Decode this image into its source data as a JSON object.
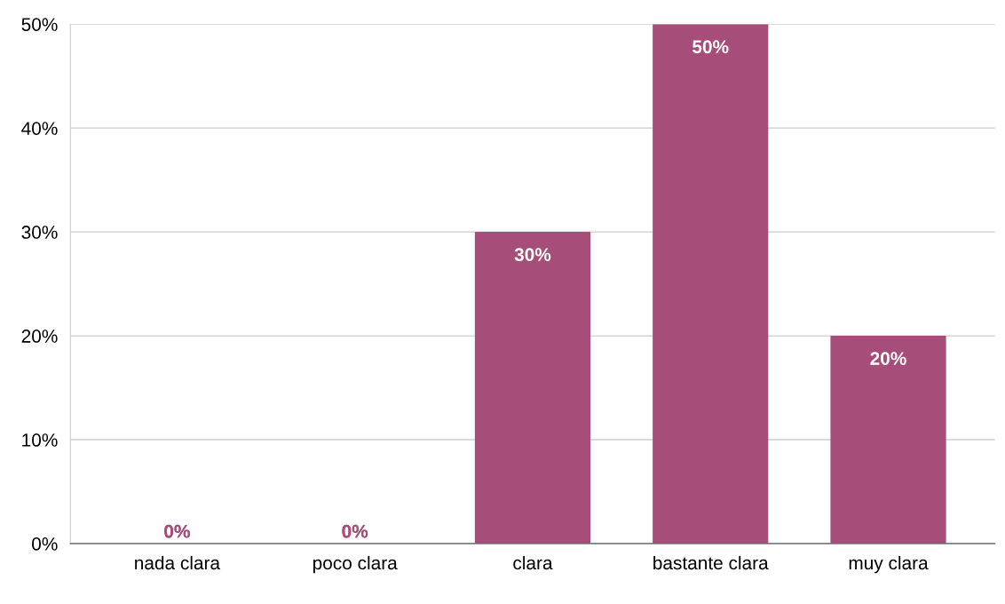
{
  "chart_data": {
    "type": "bar",
    "categories": [
      "nada clara",
      "poco clara",
      "clara",
      "bastante clara",
      "muy clara"
    ],
    "values": [
      0,
      0,
      30,
      50,
      20
    ],
    "value_labels": [
      "0%",
      "0%",
      "30%",
      "50%",
      "20%"
    ],
    "color": "#a64d79",
    "ylim": [
      0,
      50
    ],
    "yticks": [
      {
        "value": 0,
        "label": "0%"
      },
      {
        "value": 10,
        "label": "10%"
      },
      {
        "value": 20,
        "label": "20%"
      },
      {
        "value": 30,
        "label": "30%"
      },
      {
        "value": 40,
        "label": "40%"
      },
      {
        "value": 50,
        "label": "50%"
      }
    ],
    "grid": "y"
  }
}
